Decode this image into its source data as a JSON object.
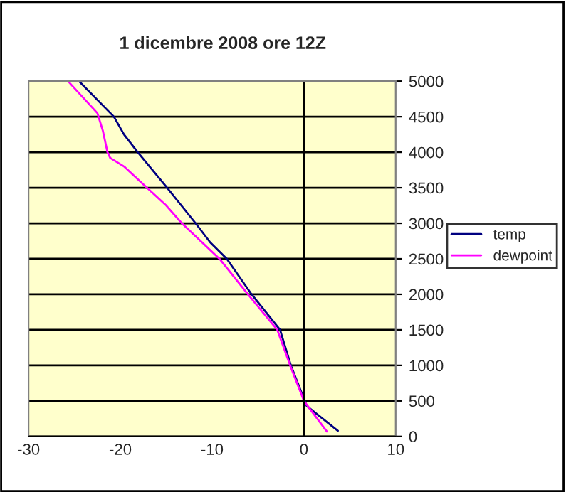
{
  "chart_data": {
    "type": "line",
    "title": "1 dicembre 2008 ore 12Z",
    "series": [
      {
        "name": "temp",
        "color": "#000080",
        "x": [
          3.7,
          0.3,
          0,
          -1.4,
          -2.6,
          -5.7,
          -8.4,
          -10.2,
          -11.8,
          -14.9,
          -18.1,
          -19.6,
          -20.7,
          -24.5
        ],
        "values": [
          80,
          430,
          530,
          990,
          1500,
          2000,
          2500,
          2730,
          3000,
          3500,
          4000,
          4250,
          4500,
          5000
        ]
      },
      {
        "name": "dewpoint",
        "color": "#ff00ff",
        "x": [
          2.5,
          0,
          -1.5,
          -2.9,
          -6.1,
          -9.2,
          -13.3,
          -15.0,
          -17.1,
          -19.6,
          -21.1,
          -21.4,
          -21.9,
          -22.5,
          -25.7
        ],
        "values": [
          70,
          500,
          1000,
          1500,
          2000,
          2500,
          3000,
          3250,
          3500,
          3800,
          3920,
          4000,
          4300,
          4550,
          5000
        ]
      }
    ],
    "xlim": [
      -30,
      10
    ],
    "xticks": [
      -30,
      -20,
      -10,
      0,
      10
    ],
    "ylim": [
      0,
      5000
    ],
    "yticks": [
      0,
      500,
      1000,
      1500,
      2000,
      2500,
      3000,
      3500,
      4000,
      4500,
      5000
    ],
    "ref_lines": [
      {
        "axis": "x",
        "value": 0,
        "color": "#000000"
      }
    ],
    "grid": "y",
    "legend": "right"
  }
}
